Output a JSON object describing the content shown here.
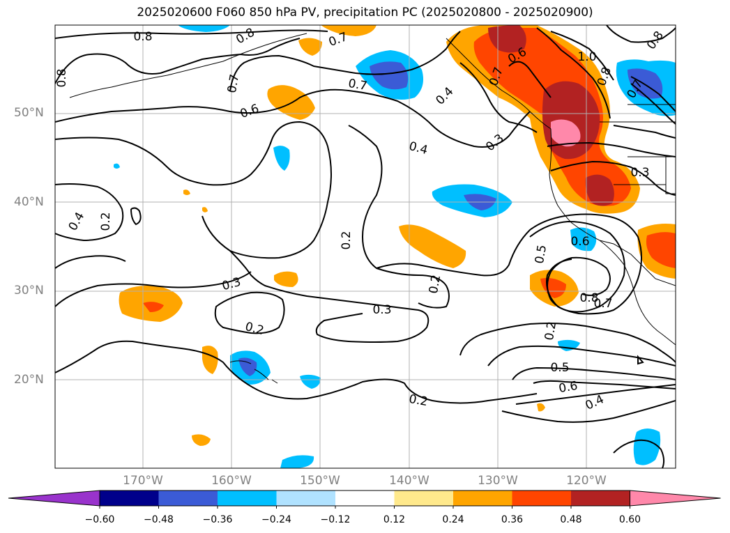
{
  "title": "2025020600 F060 850 hPa PV, precipitation PC (2025020800 - 2025020900)",
  "lat_labels": [
    "50°N",
    "40°N",
    "30°N",
    "20°N"
  ],
  "lon_labels": [
    "170°W",
    "160°W",
    "150°W",
    "140°W",
    "130°W",
    "120°W"
  ],
  "colorbar": {
    "ticks": [
      "−0.60",
      "−0.48",
      "−0.36",
      "−0.24",
      "−0.12",
      "0.12",
      "0.24",
      "0.36",
      "0.48",
      "0.60"
    ],
    "colors": [
      "#9933cc",
      "#00008b",
      "#3b5bd6",
      "#00bfff",
      "#b0e2ff",
      "#ffffff",
      "#ffe98c",
      "#ffa500",
      "#ff4500",
      "#b22222",
      "#ff88aa"
    ]
  },
  "contour_labels": [
    {
      "t": "0.8"
    },
    {
      "t": "0.8"
    },
    {
      "t": "0.7"
    },
    {
      "t": "0.8"
    },
    {
      "t": "0.7"
    },
    {
      "t": "0.6"
    },
    {
      "t": "0.7"
    },
    {
      "t": "0.4"
    },
    {
      "t": "0.4"
    },
    {
      "t": "0.3"
    },
    {
      "t": "0.4"
    },
    {
      "t": "0.2"
    },
    {
      "t": "0.3"
    },
    {
      "t": "0.2"
    },
    {
      "t": "0.2"
    },
    {
      "t": "0.3"
    },
    {
      "t": "0.5"
    },
    {
      "t": "0.6"
    },
    {
      "t": "0.8"
    },
    {
      "t": "0.7"
    },
    {
      "t": "0.2"
    },
    {
      "t": "0.5"
    },
    {
      "t": "0.6"
    },
    {
      "t": "0.4"
    },
    {
      "t": "0.2"
    },
    {
      "t": "0.6"
    },
    {
      "t": "0.7"
    },
    {
      "t": "1.0"
    },
    {
      "t": "0.3"
    },
    {
      "t": "0.2"
    },
    {
      "t": "0.8"
    },
    {
      "t": "0.8"
    },
    {
      "t": "0.7"
    }
  ]
}
